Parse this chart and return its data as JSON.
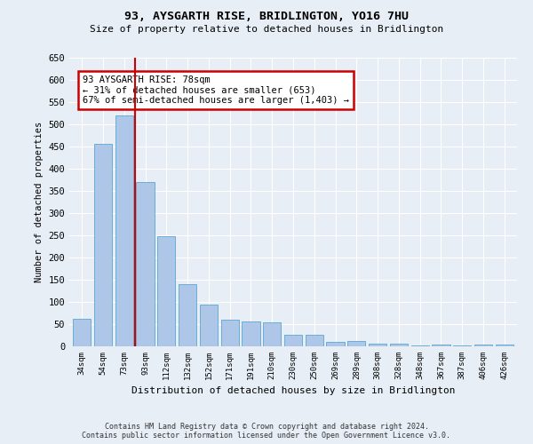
{
  "title1": "93, AYSGARTH RISE, BRIDLINGTON, YO16 7HU",
  "title2": "Size of property relative to detached houses in Bridlington",
  "xlabel": "Distribution of detached houses by size in Bridlington",
  "ylabel": "Number of detached properties",
  "categories": [
    "34sqm",
    "54sqm",
    "73sqm",
    "93sqm",
    "112sqm",
    "132sqm",
    "152sqm",
    "171sqm",
    "191sqm",
    "210sqm",
    "230sqm",
    "250sqm",
    "269sqm",
    "289sqm",
    "308sqm",
    "328sqm",
    "348sqm",
    "367sqm",
    "387sqm",
    "406sqm",
    "426sqm"
  ],
  "values": [
    62,
    457,
    520,
    370,
    248,
    140,
    95,
    60,
    57,
    55,
    27,
    27,
    10,
    12,
    7,
    6,
    3,
    5,
    2,
    4,
    5
  ],
  "bar_color": "#aec6e8",
  "bar_edge_color": "#6aaed6",
  "vline_x": 2.5,
  "vline_color": "#cc0000",
  "annotation_text": "93 AYSGARTH RISE: 78sqm\n← 31% of detached houses are smaller (653)\n67% of semi-detached houses are larger (1,403) →",
  "annotation_box_color": "#ffffff",
  "annotation_box_edge": "#cc0000",
  "ylim": [
    0,
    650
  ],
  "yticks": [
    0,
    50,
    100,
    150,
    200,
    250,
    300,
    350,
    400,
    450,
    500,
    550,
    600,
    650
  ],
  "footer1": "Contains HM Land Registry data © Crown copyright and database right 2024.",
  "footer2": "Contains public sector information licensed under the Open Government Licence v3.0.",
  "bg_color": "#e8eef5",
  "plot_bg_color": "#e8eef5"
}
